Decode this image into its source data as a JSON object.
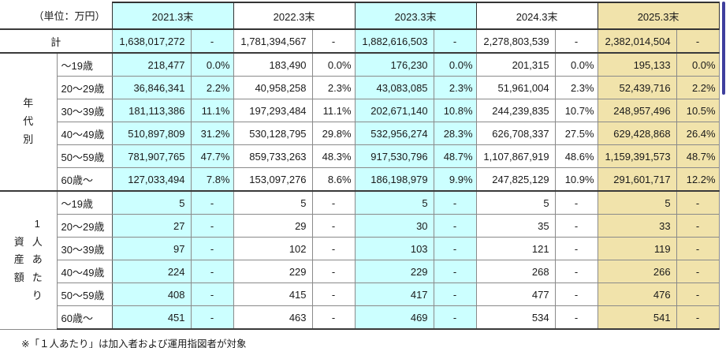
{
  "unit_label": "（単位：万円）",
  "columns": [
    "2021.3末",
    "2022.3末",
    "2023.3末",
    "2024.3末",
    "2025.3末"
  ],
  "column_styles": [
    "cyan",
    "white",
    "cyan",
    "white",
    "tan"
  ],
  "colors": {
    "cyan": "#CCFFFF",
    "tan": "#F1E3AB",
    "scrollbar": "#3F3F9E",
    "border_heavy": "#3a3a3a",
    "border_light": "#8a8a8a"
  },
  "total_row": {
    "label": "計",
    "values": [
      [
        "1,638,017,272",
        "-"
      ],
      [
        "1,781,394,567",
        "-"
      ],
      [
        "1,882,616,503",
        "-"
      ],
      [
        "2,278,803,539",
        "-"
      ],
      [
        "2,382,014,504",
        "-"
      ]
    ]
  },
  "sections": [
    {
      "label": "年代別",
      "label_columns": [
        [
          "年",
          "代",
          "別"
        ]
      ],
      "rows": [
        {
          "label": "～19歳",
          "cells": [
            [
              "218,477",
              "0.0%"
            ],
            [
              "183,490",
              "0.0%"
            ],
            [
              "176,230",
              "0.0%"
            ],
            [
              "201,315",
              "0.0%"
            ],
            [
              "195,133",
              "0.0%"
            ]
          ]
        },
        {
          "label": "20～29歳",
          "cells": [
            [
              "36,846,341",
              "2.2%"
            ],
            [
              "40,958,258",
              "2.3%"
            ],
            [
              "43,083,085",
              "2.3%"
            ],
            [
              "51,961,004",
              "2.3%"
            ],
            [
              "52,439,716",
              "2.2%"
            ]
          ]
        },
        {
          "label": "30～39歳",
          "cells": [
            [
              "181,113,386",
              "11.1%"
            ],
            [
              "197,293,484",
              "11.1%"
            ],
            [
              "202,671,140",
              "10.8%"
            ],
            [
              "244,239,835",
              "10.7%"
            ],
            [
              "248,957,496",
              "10.5%"
            ]
          ]
        },
        {
          "label": "40～49歳",
          "cells": [
            [
              "510,897,809",
              "31.2%"
            ],
            [
              "530,128,795",
              "29.8%"
            ],
            [
              "532,956,274",
              "28.3%"
            ],
            [
              "626,708,337",
              "27.5%"
            ],
            [
              "629,428,868",
              "26.4%"
            ]
          ]
        },
        {
          "label": "50～59歳",
          "cells": [
            [
              "781,907,765",
              "47.7%"
            ],
            [
              "859,733,263",
              "48.3%"
            ],
            [
              "917,530,796",
              "48.7%"
            ],
            [
              "1,107,867,919",
              "48.6%"
            ],
            [
              "1,159,391,573",
              "48.7%"
            ]
          ]
        },
        {
          "label": "60歳～",
          "cells": [
            [
              "127,033,494",
              "7.8%"
            ],
            [
              "153,097,276",
              "8.6%"
            ],
            [
              "186,198,979",
              "9.9%"
            ],
            [
              "247,825,129",
              "10.9%"
            ],
            [
              "291,601,717",
              "12.2%"
            ]
          ]
        }
      ]
    },
    {
      "label": "1人あたり資産額",
      "label_columns": [
        [
          "資",
          "産",
          "額"
        ],
        [
          "1",
          "人",
          "あ",
          "た",
          "り"
        ]
      ],
      "rows": [
        {
          "label": "～19歳",
          "cells": [
            [
              "5",
              "-"
            ],
            [
              "5",
              "-"
            ],
            [
              "5",
              "-"
            ],
            [
              "5",
              "-"
            ],
            [
              "5",
              "-"
            ]
          ]
        },
        {
          "label": "20～29歳",
          "cells": [
            [
              "27",
              "-"
            ],
            [
              "29",
              "-"
            ],
            [
              "30",
              "-"
            ],
            [
              "35",
              "-"
            ],
            [
              "33",
              "-"
            ]
          ]
        },
        {
          "label": "30～39歳",
          "cells": [
            [
              "97",
              "-"
            ],
            [
              "102",
              "-"
            ],
            [
              "103",
              "-"
            ],
            [
              "121",
              "-"
            ],
            [
              "119",
              "-"
            ]
          ]
        },
        {
          "label": "40～49歳",
          "cells": [
            [
              "224",
              "-"
            ],
            [
              "229",
              "-"
            ],
            [
              "229",
              "-"
            ],
            [
              "268",
              "-"
            ],
            [
              "266",
              "-"
            ]
          ]
        },
        {
          "label": "50～59歳",
          "cells": [
            [
              "408",
              "-"
            ],
            [
              "415",
              "-"
            ],
            [
              "417",
              "-"
            ],
            [
              "477",
              "-"
            ],
            [
              "476",
              "-"
            ]
          ]
        },
        {
          "label": "60歳～",
          "cells": [
            [
              "451",
              "-"
            ],
            [
              "463",
              "-"
            ],
            [
              "469",
              "-"
            ],
            [
              "534",
              "-"
            ],
            [
              "541",
              "-"
            ]
          ]
        }
      ]
    }
  ],
  "footnote": "※「１人あたり」は加入者および運用指図者が対象"
}
